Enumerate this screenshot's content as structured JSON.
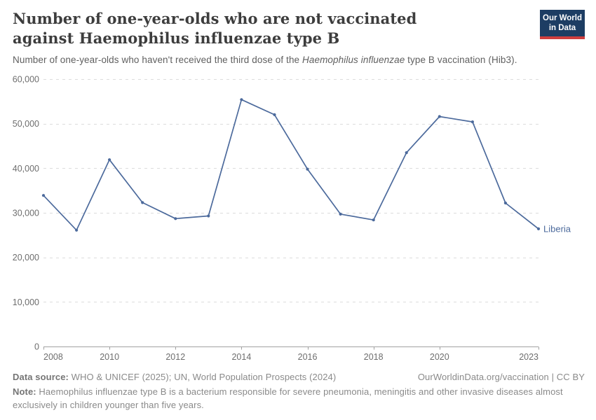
{
  "header": {
    "title": "Number of one-year-olds who are not vaccinated against Haemophilus influenzae type B",
    "subtitle": {
      "pre": "Number of one-year-olds who haven't received the third dose of the ",
      "italic": "Haemophilus influenzae",
      "post": " type B vaccination (Hib3)."
    },
    "logo": {
      "line1": "Our World",
      "line2": "in Data",
      "bg_color": "#1d3d63",
      "bar_color": "#cf3e3e"
    }
  },
  "chart_data": {
    "type": "line",
    "title": "Number of one-year-olds who are not vaccinated against Haemophilus influenzae type B",
    "xlabel": "",
    "ylabel": "",
    "xlim": [
      2008,
      2023
    ],
    "ylim": [
      0,
      60000
    ],
    "x_ticks": [
      2008,
      2010,
      2012,
      2014,
      2016,
      2018,
      2020,
      2023
    ],
    "y_ticks": [
      0,
      10000,
      20000,
      30000,
      40000,
      50000,
      60000
    ],
    "grid": "horizontal-dashed",
    "legend_position": "end-of-line-label",
    "series": [
      {
        "name": "Liberia",
        "color": "#4C6A9C",
        "x": [
          2008,
          2009,
          2010,
          2011,
          2012,
          2013,
          2014,
          2015,
          2016,
          2017,
          2018,
          2019,
          2020,
          2021,
          2022,
          2023
        ],
        "values": [
          33900,
          26100,
          41900,
          32300,
          28700,
          29300,
          55400,
          52000,
          39800,
          29700,
          28400,
          43500,
          51600,
          50400,
          32200,
          26400
        ]
      }
    ],
    "axis_colors": {
      "gridline": "#dcdcdc",
      "axis": "#a1a1a1",
      "tick_text": "#6e6e6e"
    }
  },
  "footer": {
    "source_label": "Data source:",
    "source_text": " WHO & UNICEF (2025); UN, World Population Prospects (2024)",
    "link": "OurWorldinData.org/vaccination | CC BY",
    "note_label": "Note:",
    "note_text": " Haemophilus influenzae type B is a bacterium responsible for severe pneumonia, meningitis and other invasive diseases almost exclusively in children younger than five years."
  }
}
